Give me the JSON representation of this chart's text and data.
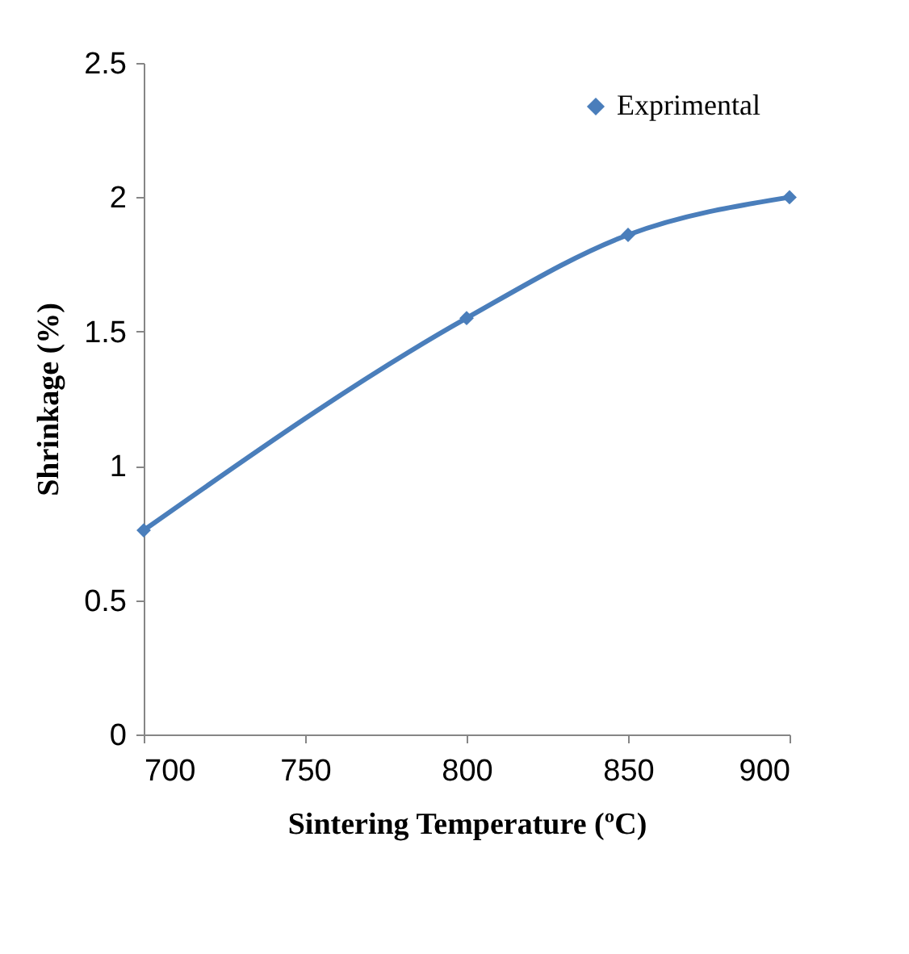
{
  "chart_data": {
    "type": "line",
    "xlabel": "Sintering Temperature (ºC)",
    "ylabel": "Shrinkage (%)",
    "x": [
      700,
      800,
      850,
      900
    ],
    "series": [
      {
        "name": "Exprimental",
        "color": "#4a7ebb",
        "values": [
          0.76,
          1.55,
          1.86,
          2.0
        ]
      }
    ],
    "xlim": [
      700,
      900
    ],
    "xticks": [
      700,
      750,
      800,
      850,
      900
    ],
    "ylim": [
      0,
      2.5
    ],
    "yticks": [
      0,
      0.5,
      1,
      1.5,
      2,
      2.5
    ],
    "grid": false,
    "legend": "top right",
    "marker": "diamond",
    "line_style": "solid"
  }
}
